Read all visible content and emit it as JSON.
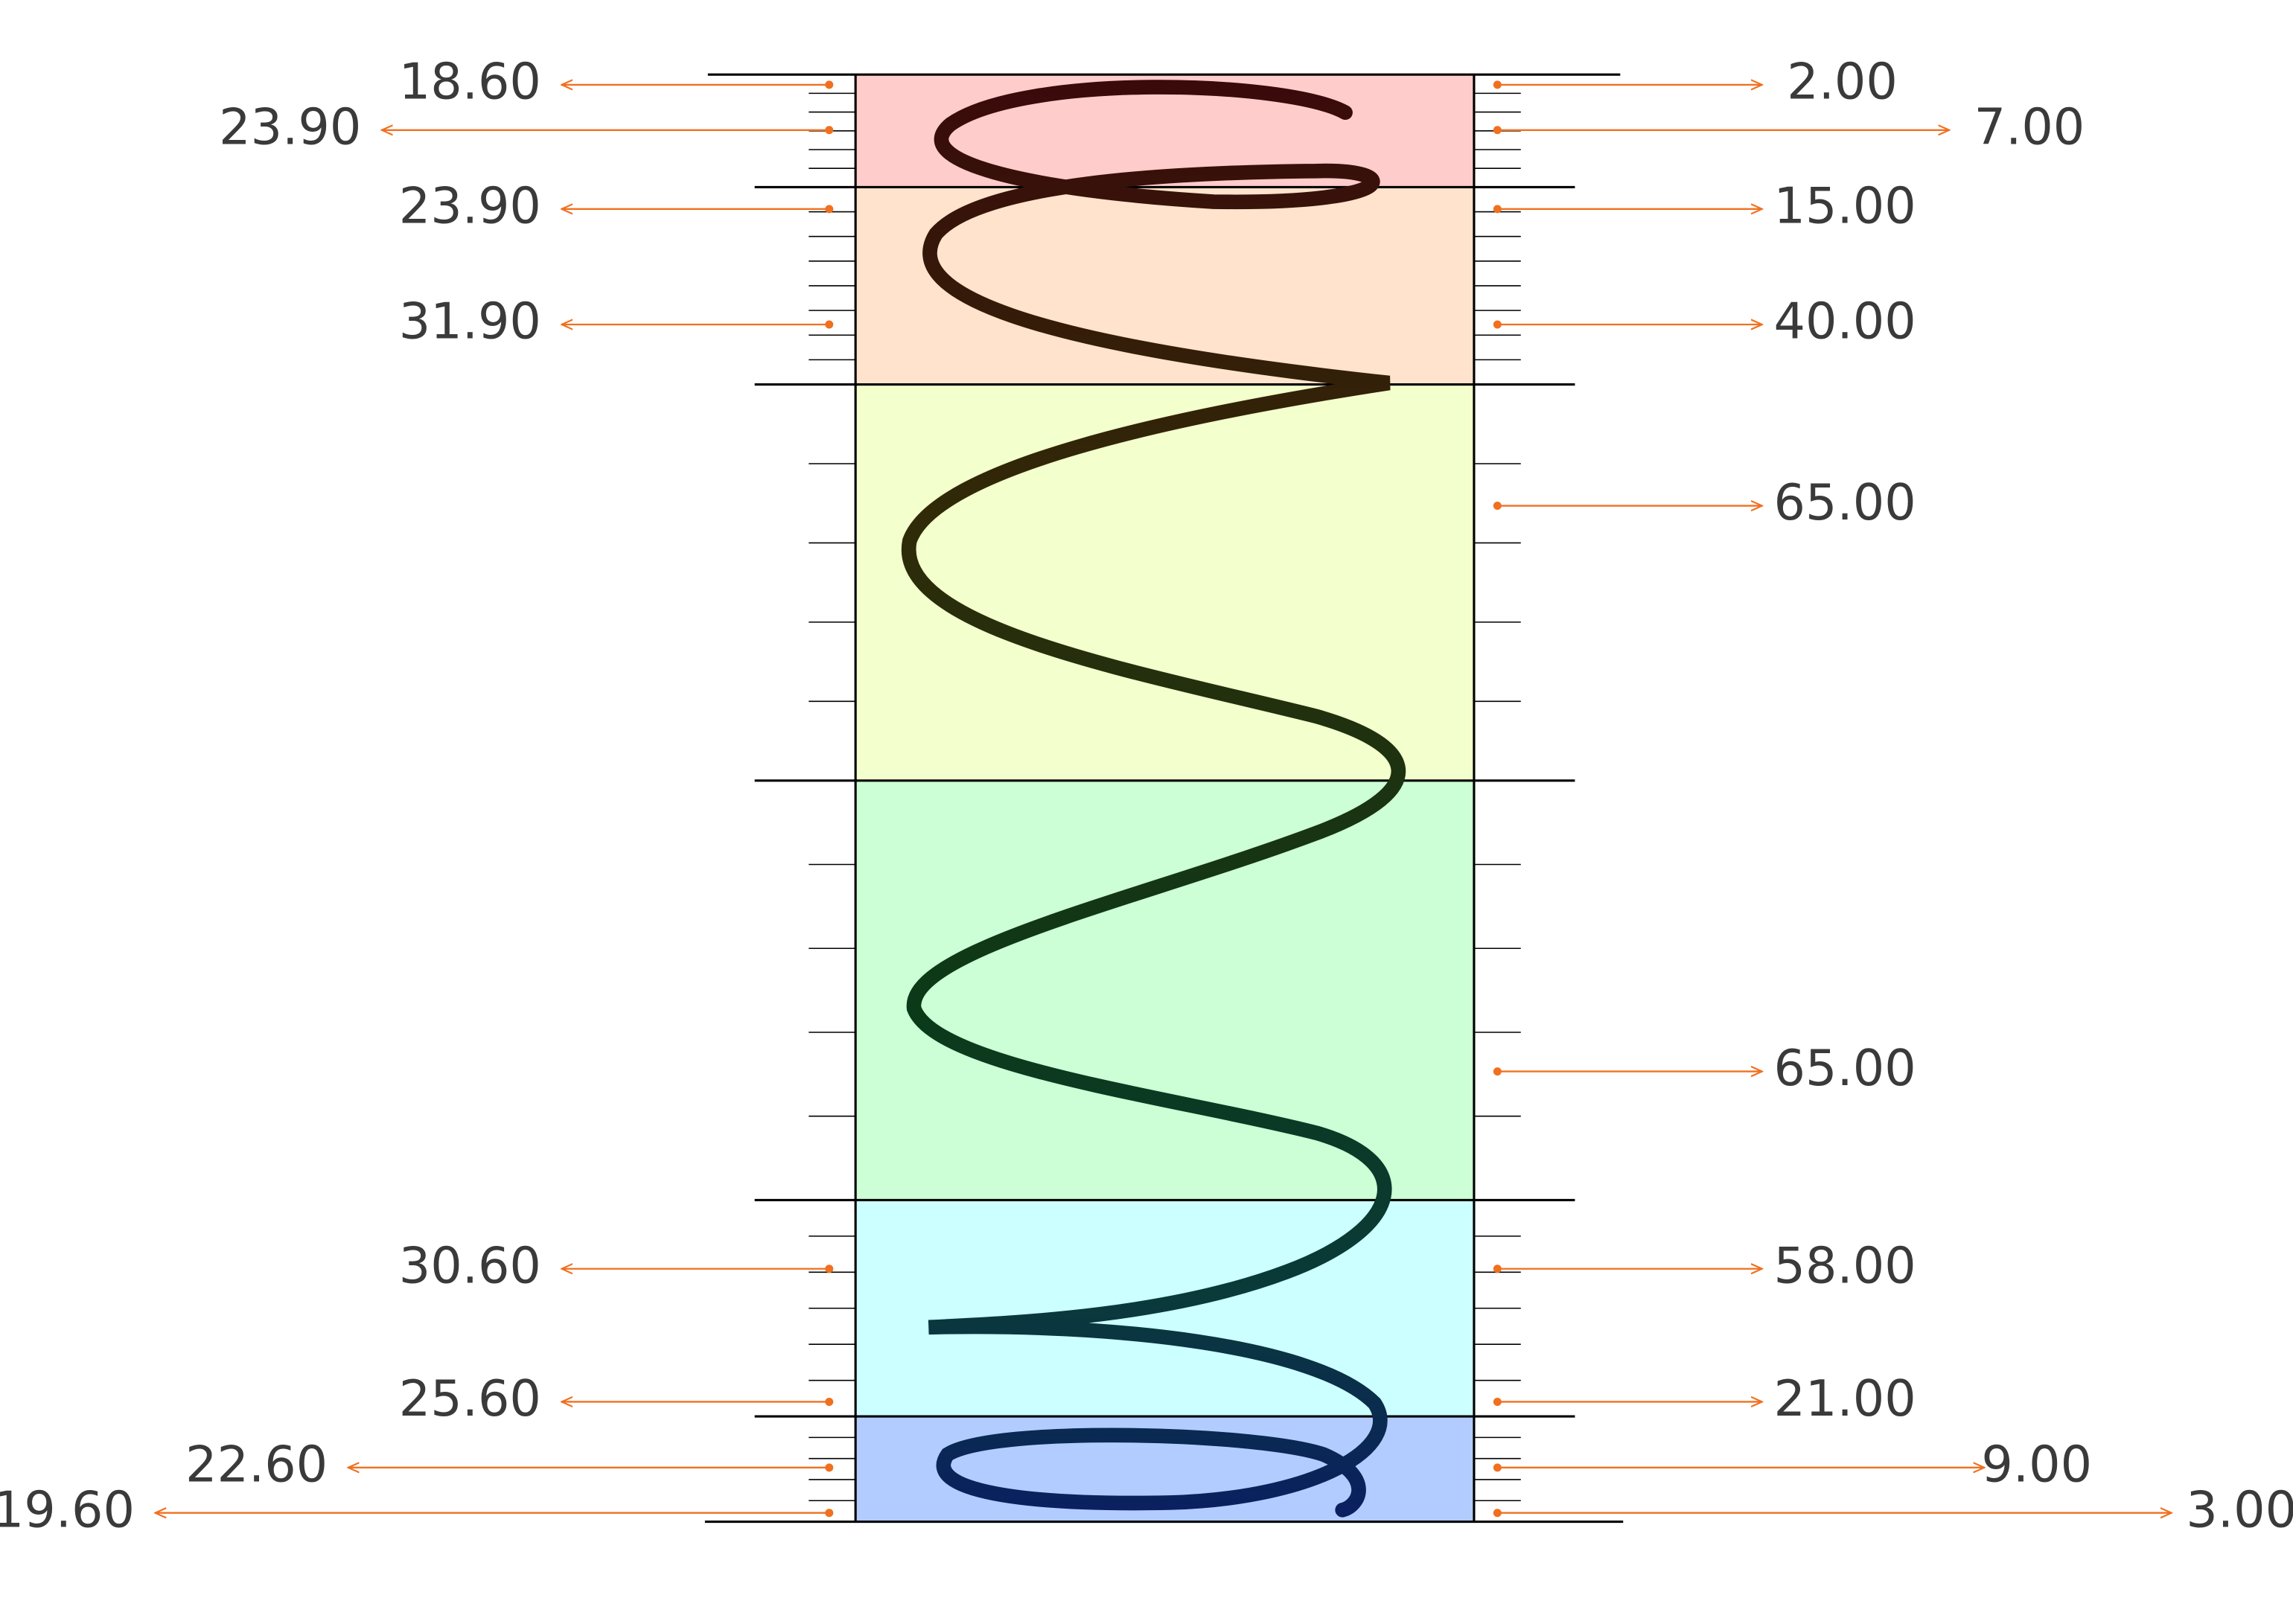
{
  "left_labels": [
    "18.60",
    "23.90",
    "23.90",
    "31.90",
    "30.60",
    "25.60",
    "22.60",
    "19.60"
  ],
  "right_labels": [
    "2.00",
    "7.00",
    "15.00",
    "40.00",
    "65.00",
    "65.00",
    "58.00",
    "21.00",
    "9.00",
    "3.00"
  ]
}
